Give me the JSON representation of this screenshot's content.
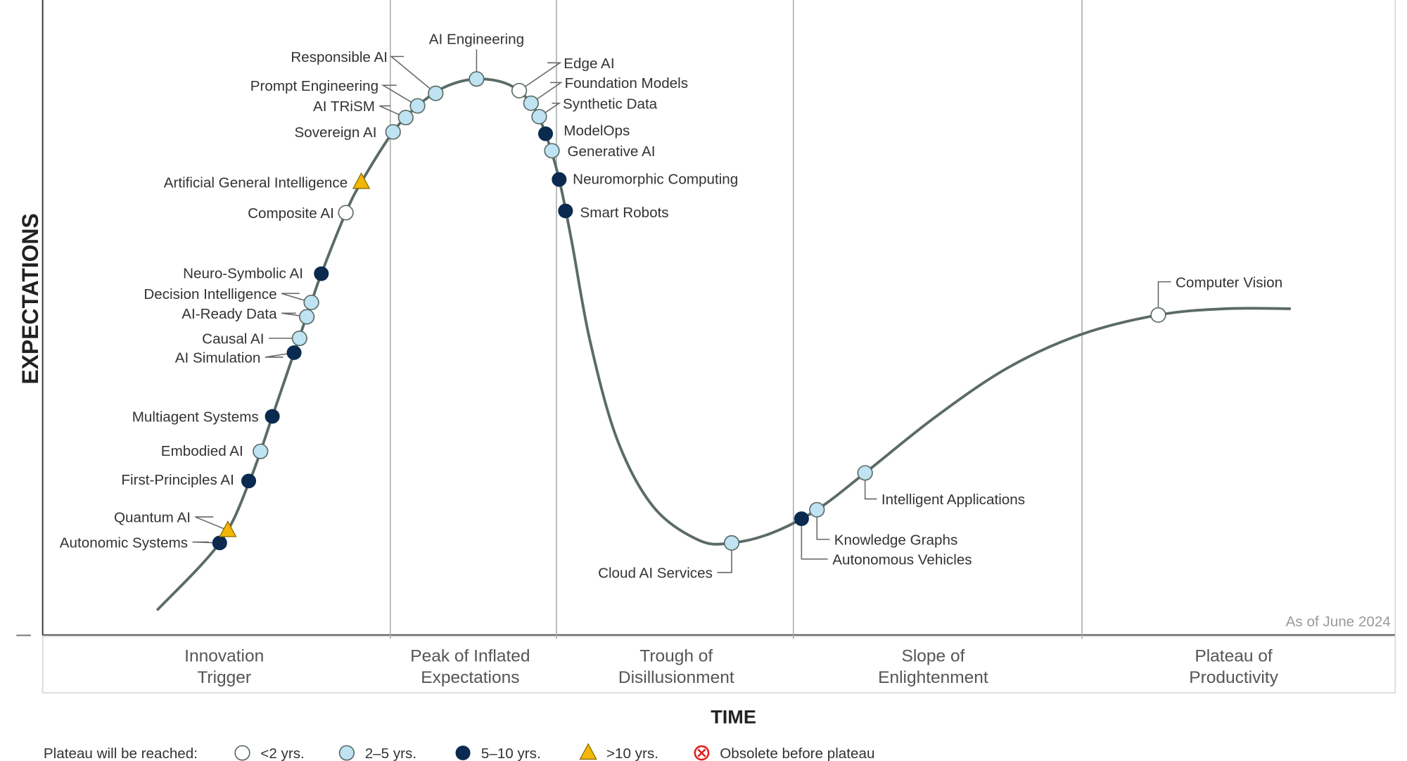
{
  "axes": {
    "y_label": "EXPECTATIONS",
    "x_label": "TIME"
  },
  "as_of": "As of June 2024",
  "phases": [
    "Innovation Trigger",
    "Peak of Inflated Expectations",
    "Trough of Disillusionment",
    "Slope of Enlightenment",
    "Plateau of Productivity"
  ],
  "phase_lines": [
    [
      "Innovation",
      "Trigger"
    ],
    [
      "Peak of Inflated",
      "Expectations"
    ],
    [
      "Trough of",
      "Disillusionment"
    ],
    [
      "Slope of",
      "Enlightenment"
    ],
    [
      "Plateau of",
      "Productivity"
    ]
  ],
  "legend": {
    "title": "Plateau will be reached:",
    "items": [
      {
        "key": "lt2",
        "label": "<2 yrs.",
        "color": "#ffffff"
      },
      {
        "key": "2to5",
        "label": "2–5 yrs.",
        "color": "#bfe3f2"
      },
      {
        "key": "5to10",
        "label": "5–10 yrs.",
        "color": "#0b2a4f"
      },
      {
        "key": "gt10",
        "label": ">10 yrs.",
        "color": "#f2b705"
      },
      {
        "key": "obsolete",
        "label": "Obsolete before plateau",
        "color": "#e02020"
      }
    ]
  },
  "technologies": [
    {
      "label": "Autonomic Systems",
      "plateau": "5to10"
    },
    {
      "label": "Quantum AI",
      "plateau": "gt10"
    },
    {
      "label": "First-Principles AI",
      "plateau": "5to10"
    },
    {
      "label": "Embodied AI",
      "plateau": "2to5"
    },
    {
      "label": "Multiagent Systems",
      "plateau": "5to10"
    },
    {
      "label": "AI Simulation",
      "plateau": "5to10"
    },
    {
      "label": "Causal AI",
      "plateau": "2to5"
    },
    {
      "label": "AI-Ready Data",
      "plateau": "2to5"
    },
    {
      "label": "Decision Intelligence",
      "plateau": "2to5"
    },
    {
      "label": "Neuro-Symbolic AI",
      "plateau": "5to10"
    },
    {
      "label": "Composite AI",
      "plateau": "lt2"
    },
    {
      "label": "Artificial General Intelligence",
      "plateau": "gt10"
    },
    {
      "label": "Sovereign AI",
      "plateau": "2to5"
    },
    {
      "label": "AI TRiSM",
      "plateau": "2to5"
    },
    {
      "label": "Prompt Engineering",
      "plateau": "2to5"
    },
    {
      "label": "Responsible AI",
      "plateau": "2to5"
    },
    {
      "label": "AI Engineering",
      "plateau": "2to5"
    },
    {
      "label": "Edge AI",
      "plateau": "lt2"
    },
    {
      "label": "Foundation Models",
      "plateau": "2to5"
    },
    {
      "label": "Synthetic Data",
      "plateau": "2to5"
    },
    {
      "label": "ModelOps",
      "plateau": "5to10"
    },
    {
      "label": "Generative AI",
      "plateau": "2to5"
    },
    {
      "label": "Neuromorphic Computing",
      "plateau": "5to10"
    },
    {
      "label": "Smart Robots",
      "plateau": "5to10"
    },
    {
      "label": "Cloud AI Services",
      "plateau": "2to5"
    },
    {
      "label": "Autonomous Vehicles",
      "plateau": "5to10"
    },
    {
      "label": "Knowledge Graphs",
      "plateau": "2to5"
    },
    {
      "label": "Intelligent Applications",
      "plateau": "2to5"
    },
    {
      "label": "Computer Vision",
      "plateau": "lt2"
    }
  ]
}
